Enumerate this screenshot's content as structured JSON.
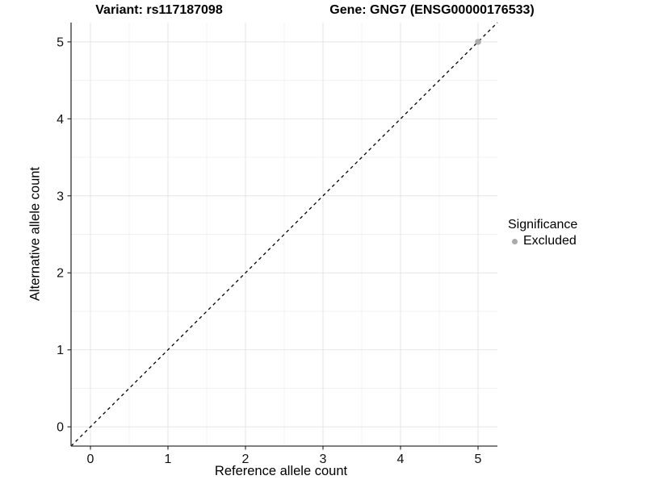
{
  "chart_data": {
    "type": "scatter",
    "title_left": "Variant: rs117187098",
    "title_right": "Gene: GNG7 (ENSG00000176533)",
    "xlabel": "Reference allele count",
    "ylabel": "Alternative allele count",
    "xlim": [
      -0.25,
      5.25
    ],
    "ylim": [
      -0.25,
      5.25
    ],
    "x_ticks": [
      0,
      1,
      2,
      3,
      4,
      5
    ],
    "y_ticks": [
      0,
      1,
      2,
      3,
      4,
      5
    ],
    "x_minor_ticks": [
      0.5,
      1.5,
      2.5,
      3.5,
      4.5
    ],
    "y_minor_ticks": [
      0.5,
      1.5,
      2.5,
      3.5,
      4.5
    ],
    "grid": true,
    "reference_line": {
      "kind": "identity",
      "from": [
        -0.25,
        -0.25
      ],
      "to": [
        5.25,
        5.25
      ],
      "style": "dashed",
      "color": "#000000"
    },
    "series": [
      {
        "name": "Excluded",
        "marker": "circle",
        "color": "#aaaaaa",
        "points": [
          {
            "x": 5,
            "y": 5
          }
        ]
      }
    ],
    "legend": {
      "title": "Significance",
      "position": "right",
      "items": [
        {
          "label": "Excluded",
          "marker": "circle",
          "color": "#aaaaaa"
        }
      ]
    },
    "colors": {
      "panel_background": "#ffffff",
      "grid_major": "#e4e4e4",
      "grid_minor": "#f1f1f1",
      "axis_line": "#333333",
      "tick_mark": "#333333",
      "tick_label": "#111111"
    }
  }
}
